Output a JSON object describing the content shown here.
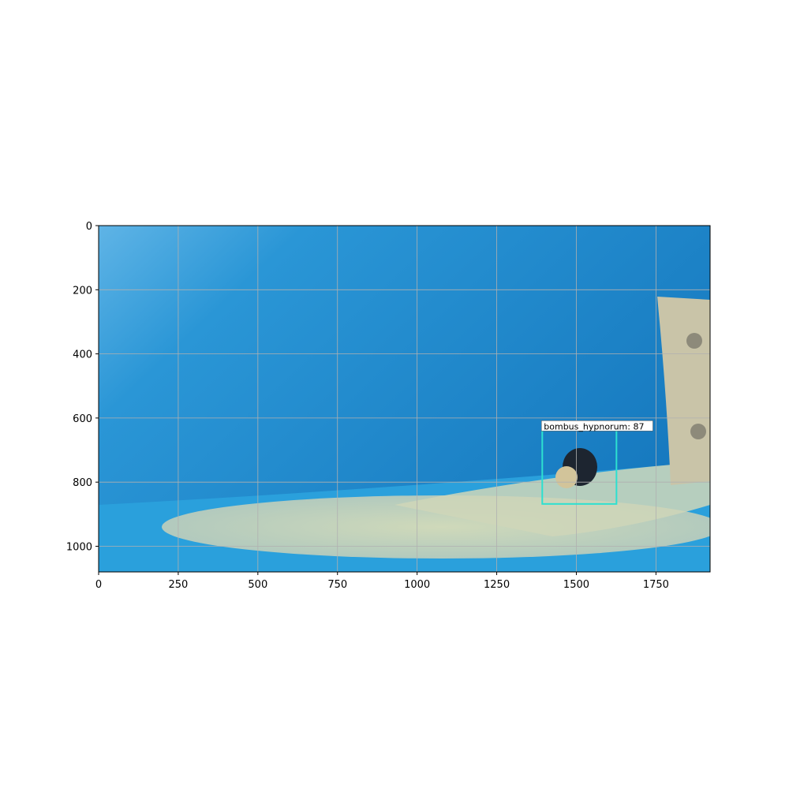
{
  "chart_data": {
    "type": "image",
    "xlim": [
      0,
      1920
    ],
    "ylim": [
      1080,
      0
    ],
    "xticks": [
      0,
      250,
      500,
      750,
      1000,
      1250,
      1500,
      1750
    ],
    "yticks": [
      0,
      200,
      400,
      600,
      800,
      1000
    ],
    "grid": true,
    "box": {
      "label": "bombus_hypnorum: 87",
      "x": [
        1393,
        1626
      ],
      "y": [
        638,
        868
      ],
      "color": "#2de0d0"
    }
  }
}
